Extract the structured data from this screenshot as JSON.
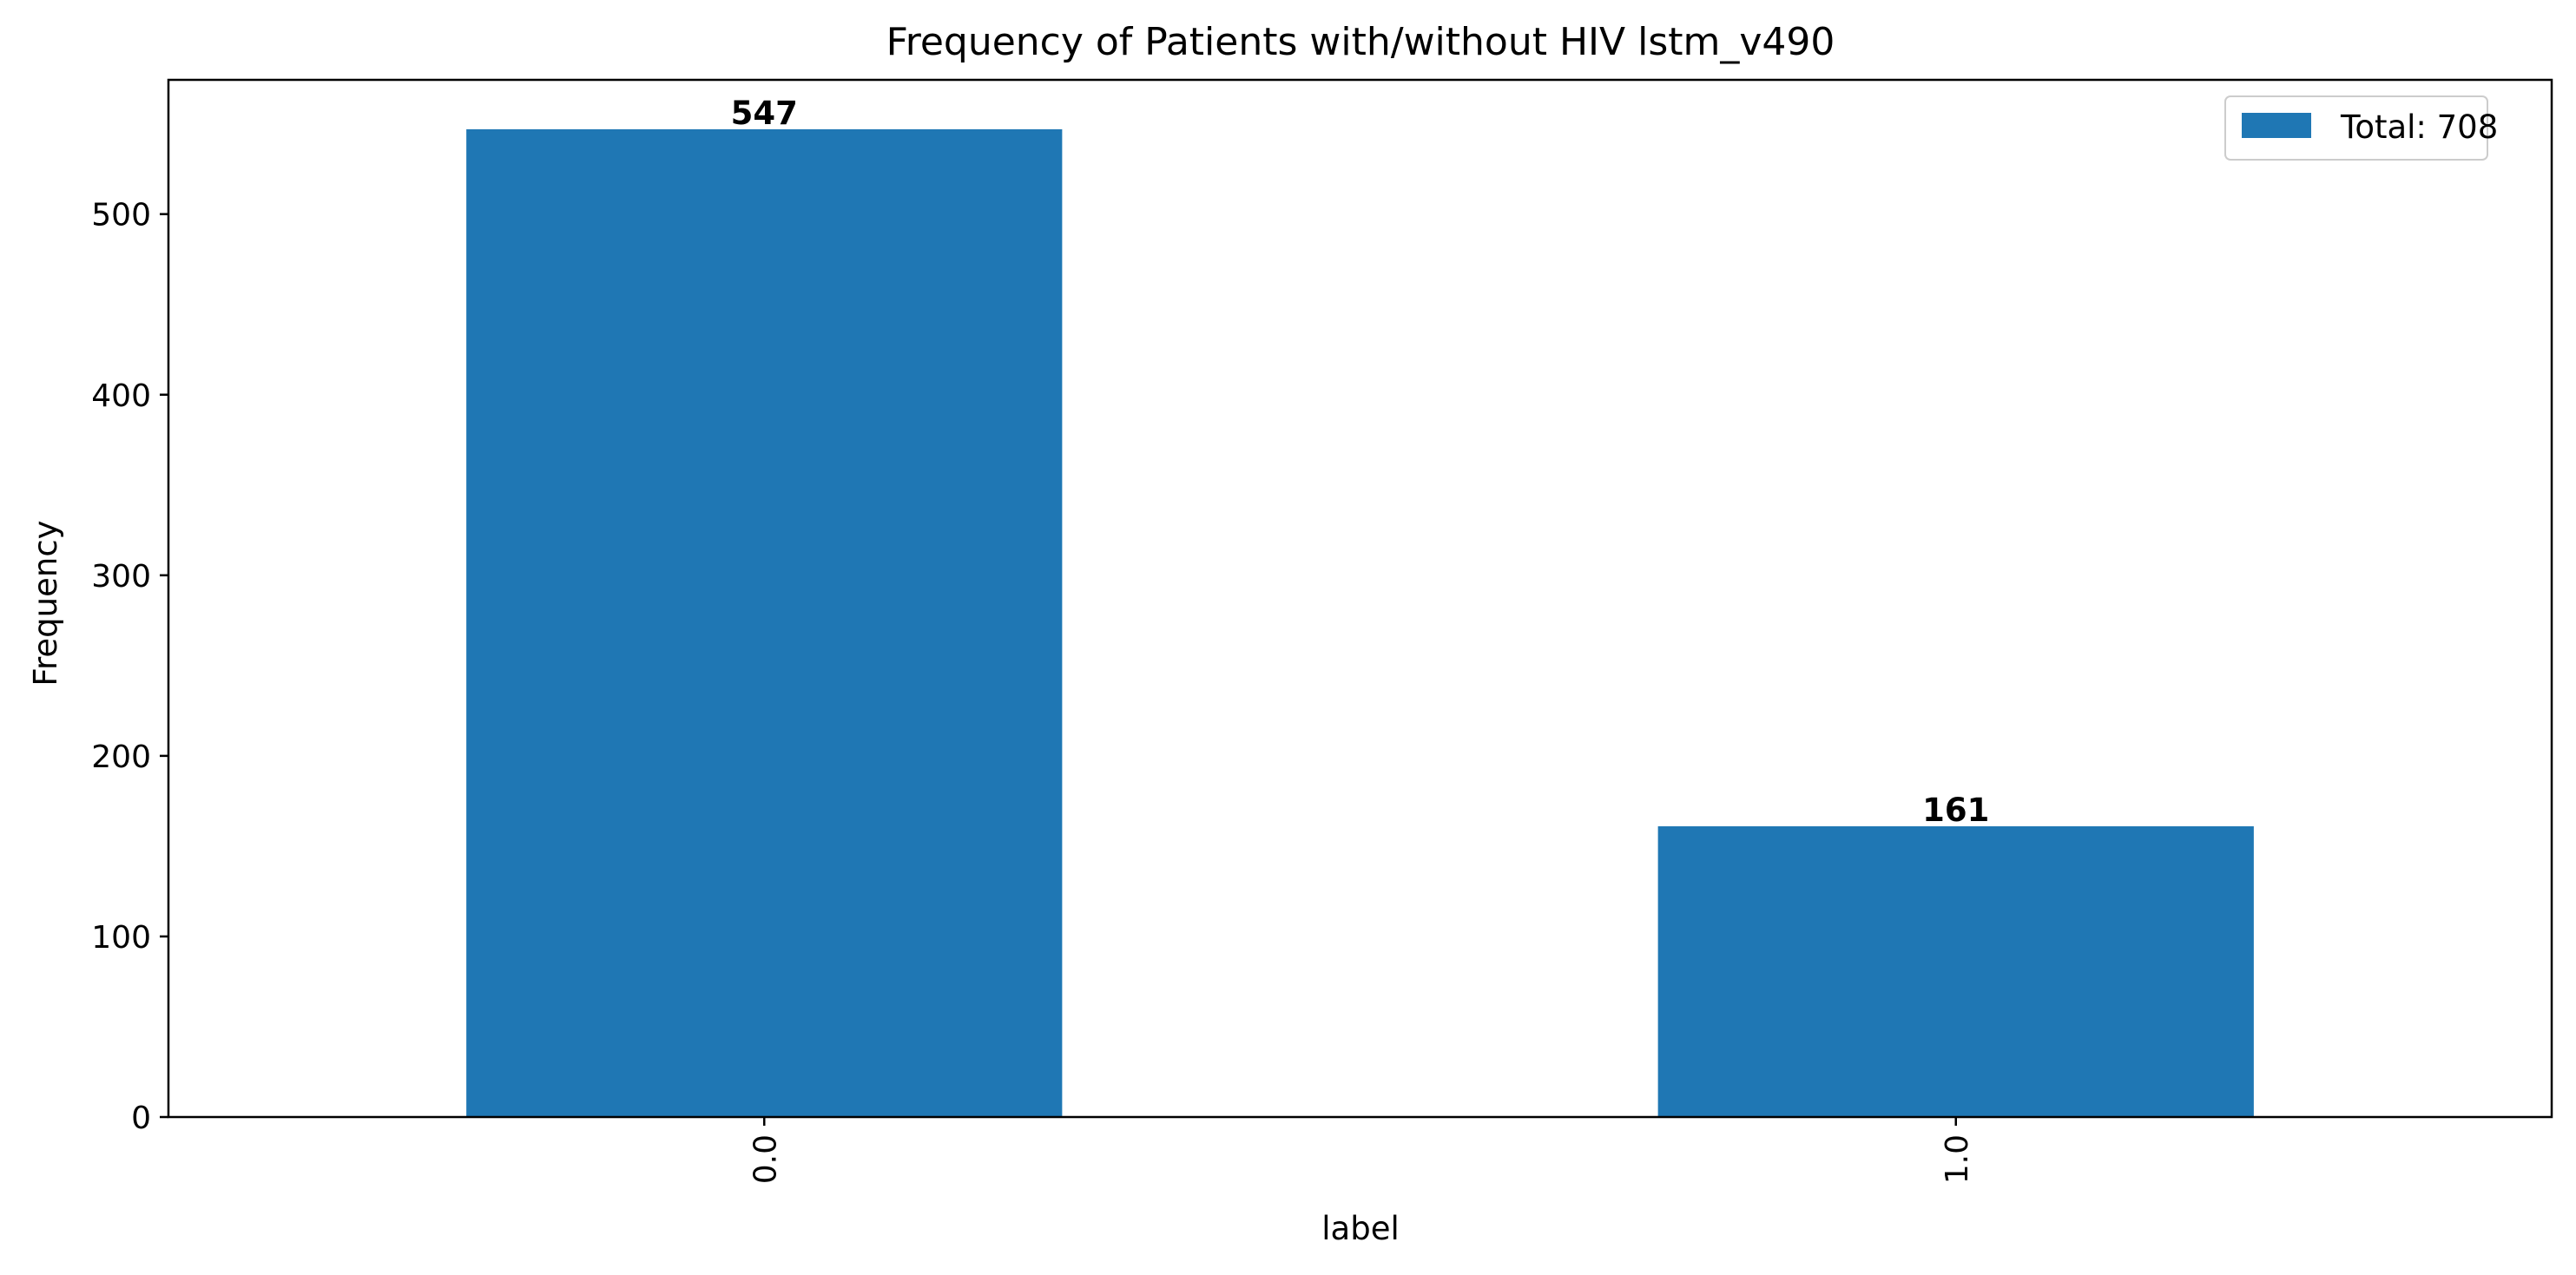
{
  "chart_data": {
    "type": "bar",
    "title": "Frequency of Patients with/without HIV lstm_v490",
    "xlabel": "label",
    "ylabel": "Frequency",
    "categories": [
      "0.0",
      "1.0"
    ],
    "values": [
      547,
      161
    ],
    "data_labels": [
      "547",
      "161"
    ],
    "ylim": [
      0,
      574.35
    ],
    "yticks": [
      0,
      100,
      200,
      300,
      400,
      500
    ],
    "ytick_labels": [
      "0",
      "100",
      "200",
      "300",
      "400",
      "500"
    ],
    "series": [
      {
        "name": "Total: 708",
        "values": [
          547,
          161
        ]
      }
    ],
    "legend": {
      "placement": "top-right",
      "label": "Total: 708"
    },
    "grid": false,
    "colors": {
      "bar": "#1f77b4",
      "axes": "#000000",
      "legend_edge": "#cccccc"
    }
  }
}
